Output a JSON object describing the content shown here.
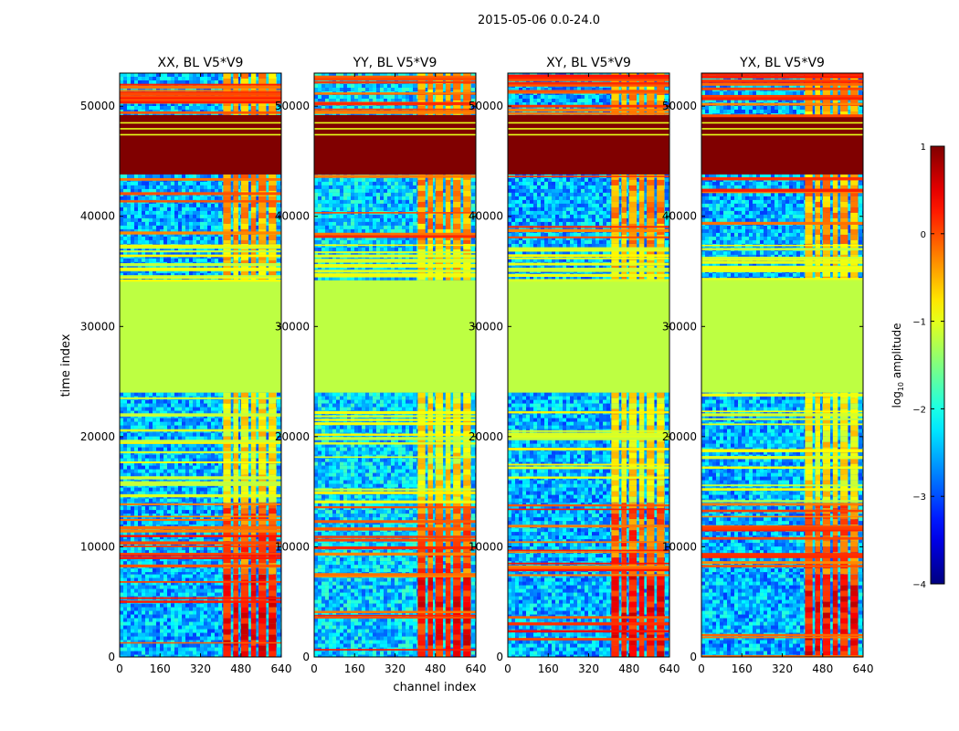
{
  "figure": {
    "suptitle": "2015-05-06 0.0-24.0"
  },
  "chart_data": {
    "type": "heatmap",
    "xlabel": "channel index",
    "ylabel": "time index",
    "xlim": [
      0,
      640
    ],
    "ylim": [
      0,
      53000
    ],
    "x_ticks": [
      0,
      160,
      320,
      480,
      640
    ],
    "y_ticks": [
      0,
      10000,
      20000,
      30000,
      40000,
      50000
    ],
    "panels": [
      {
        "title": "XX, BL V5*V9",
        "pol": "XX"
      },
      {
        "title": "YY, BL V5*V9",
        "pol": "YY"
      },
      {
        "title": "XY, BL V5*V9",
        "pol": "XY"
      },
      {
        "title": "YX, BL V5*V9",
        "pol": "YX"
      }
    ],
    "colorbar": {
      "label": "log10 amplitude",
      "label_base": "log",
      "label_sub": "10",
      "label_rest": " amplitude",
      "vmin": -4,
      "vmax": 1,
      "ticks": [
        1,
        0,
        -1,
        -2,
        -3,
        -4
      ],
      "tick_labels": [
        "1",
        "0",
        "−1",
        "−2",
        "−3",
        "−4"
      ],
      "colormap": "jet"
    },
    "time_segments": [
      {
        "start": 0,
        "end": 7500,
        "regime": "noisy",
        "bright_channel_log": 0.3
      },
      {
        "start": 7500,
        "end": 14000,
        "regime": "noisy-striped",
        "bright_channel_log": -0.1
      },
      {
        "start": 14000,
        "end": 24000,
        "regime": "striped",
        "bright_channel_log": -0.8
      },
      {
        "start": 24000,
        "end": 34200,
        "regime": "flat",
        "value_log": -1.2
      },
      {
        "start": 34200,
        "end": 37500,
        "regime": "striped",
        "bright_channel_log": -0.6
      },
      {
        "start": 37500,
        "end": 43800,
        "regime": "noisy",
        "bright_channel_log": -0.4
      },
      {
        "start": 43800,
        "end": 49200,
        "regime": "saturated",
        "value_log": 1.0
      },
      {
        "start": 49200,
        "end": 53000,
        "regime": "noisy-striped",
        "bright_channel_log": -0.5
      }
    ],
    "bright_channel_ranges": [
      [
        410,
        440
      ],
      [
        450,
        470
      ],
      [
        480,
        510
      ],
      [
        520,
        540
      ],
      [
        550,
        580
      ],
      [
        590,
        620
      ]
    ]
  }
}
